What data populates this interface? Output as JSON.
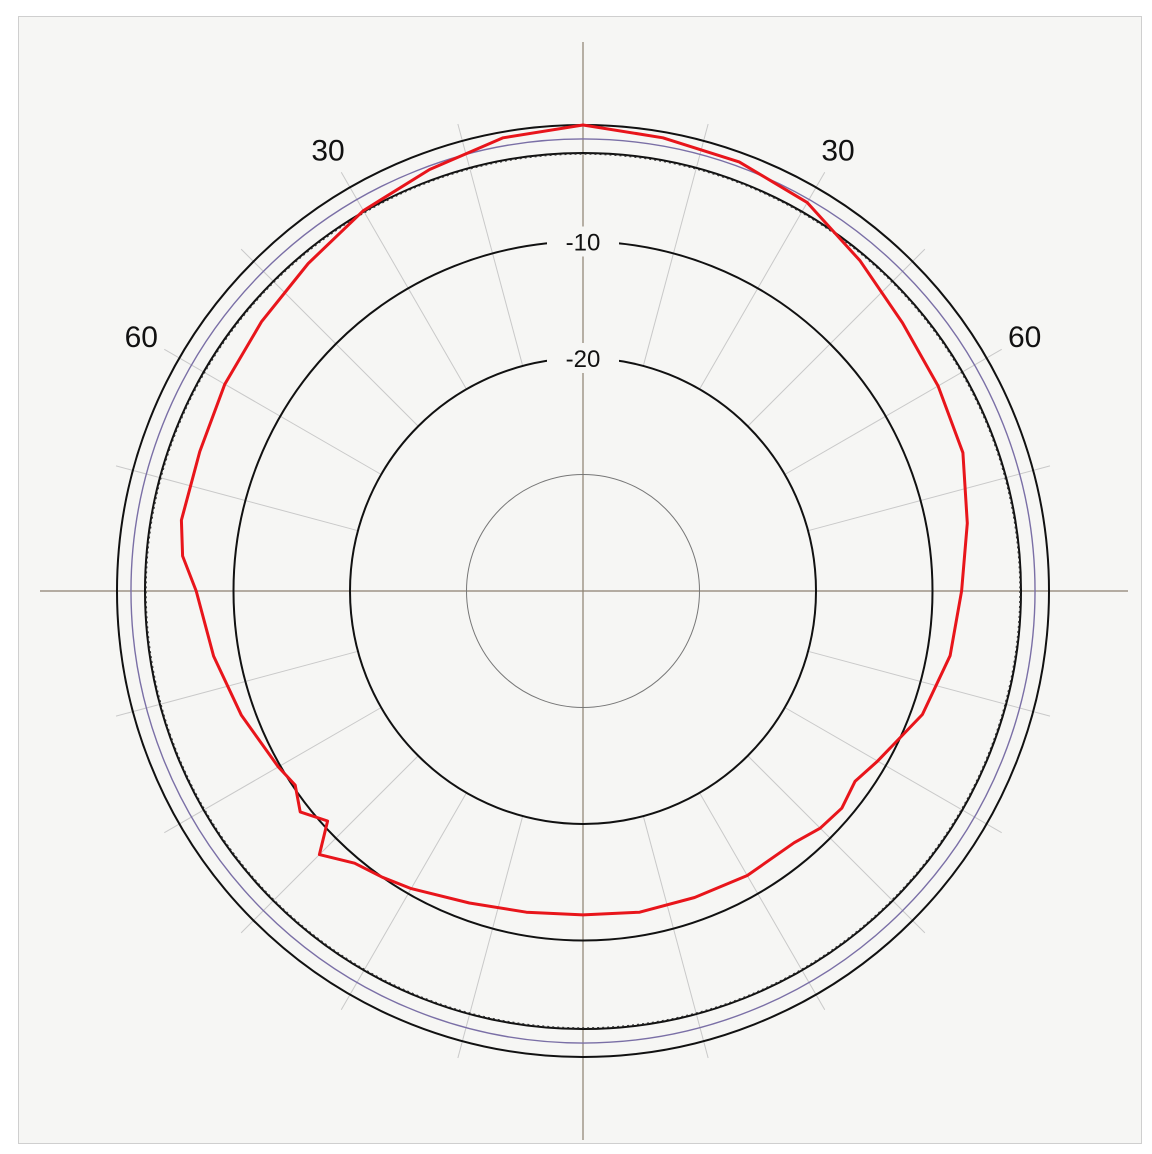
{
  "chart_data": {
    "type": "polar-line",
    "title": "",
    "angle_labels": [
      {
        "text": "30",
        "angle_deg": -30
      },
      {
        "text": "30",
        "angle_deg": 30
      },
      {
        "text": "60",
        "angle_deg": -60
      },
      {
        "text": "60",
        "angle_deg": 60
      }
    ],
    "rings": [
      {
        "value": 0,
        "style": "solid-black"
      },
      {
        "value": -1.2,
        "style": "solid-purple"
      },
      {
        "value": -2.5,
        "style": "dotted"
      },
      {
        "value": -10,
        "style": "solid-black",
        "label": "-10"
      },
      {
        "value": -20,
        "style": "solid-black",
        "label": "-20"
      },
      {
        "value": -30,
        "style": "thin-gray"
      }
    ],
    "r_range": [
      -40,
      0
    ],
    "spoke_step_deg": 15,
    "grid": true,
    "series": [
      {
        "color": "#e8151b",
        "points": [
          [
            0,
            0
          ],
          [
            10,
            -0.5
          ],
          [
            20,
            -0.8
          ],
          [
            30,
            -1.5
          ],
          [
            40,
            -3
          ],
          [
            50,
            -4.2
          ],
          [
            60,
            -4.8
          ],
          [
            70,
            -5.3
          ],
          [
            80,
            -6.5
          ],
          [
            90,
            -7.5
          ],
          [
            100,
            -8
          ],
          [
            110,
            -9
          ],
          [
            120,
            -10.8
          ],
          [
            125,
            -11.5
          ],
          [
            130,
            -11
          ],
          [
            135,
            -11.2
          ],
          [
            140,
            -11.8
          ],
          [
            150,
            -11.8
          ],
          [
            160,
            -12
          ],
          [
            170,
            -12
          ],
          [
            180,
            -12.2
          ],
          [
            190,
            -12
          ],
          [
            200,
            -11.5
          ],
          [
            210,
            -10.5
          ],
          [
            215,
            -10
          ],
          [
            220,
            -9.5
          ],
          [
            225,
            -8
          ],
          [
            228,
            -10.5
          ],
          [
            232,
            -9.2
          ],
          [
            236,
            -10.2
          ],
          [
            240,
            -9.8
          ],
          [
            250,
            -8.8
          ],
          [
            260,
            -7.8
          ],
          [
            270,
            -6.8
          ],
          [
            275,
            -5.5
          ],
          [
            280,
            -5
          ],
          [
            290,
            -5
          ],
          [
            300,
            -4.5
          ],
          [
            310,
            -4
          ],
          [
            320,
            -3.3
          ],
          [
            330,
            -2.3
          ],
          [
            340,
            -1.5
          ],
          [
            350,
            -0.5
          ],
          [
            360,
            0
          ]
        ]
      }
    ]
  }
}
